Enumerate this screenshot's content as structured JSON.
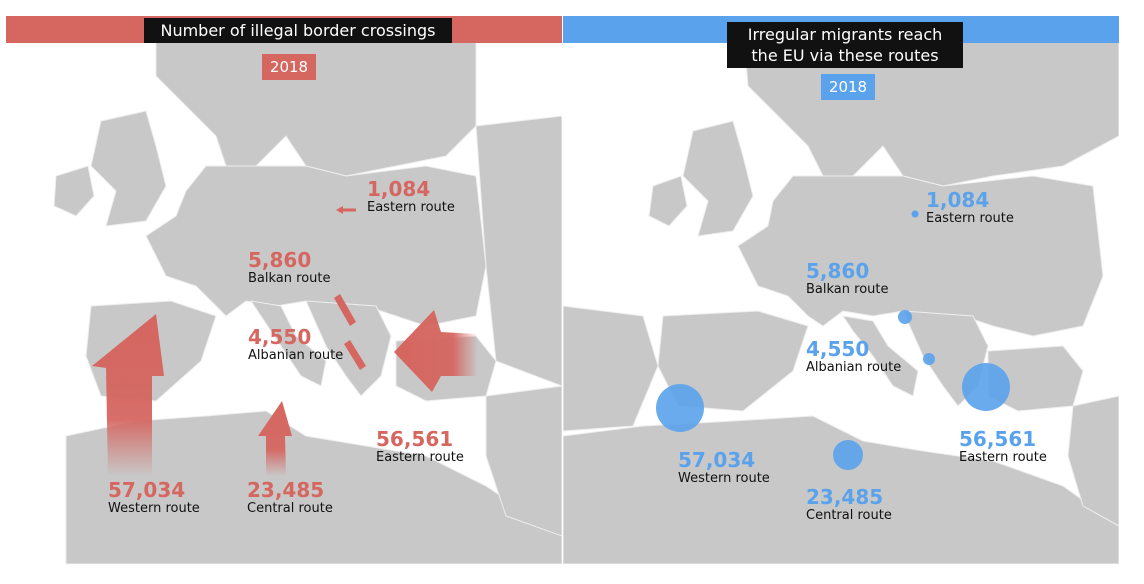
{
  "left": {
    "title": "Number of illegal border crossings",
    "year": "2018",
    "accent": "#d56660",
    "labels": [
      {
        "key": "eastern_land",
        "value": "1,084",
        "route": "Eastern route"
      },
      {
        "key": "balkan",
        "value": "5,860",
        "route": "Balkan route"
      },
      {
        "key": "albanian",
        "value": "4,550",
        "route": "Albanian route"
      },
      {
        "key": "eastern_sea",
        "value": "56,561",
        "route": "Eastern route"
      },
      {
        "key": "western",
        "value": "57,034",
        "route": "Western route"
      },
      {
        "key": "central",
        "value": "23,485",
        "route": "Central route"
      }
    ]
  },
  "right": {
    "title_line1": "Irregular migrants reach",
    "title_line2": "the EU via these routes",
    "year": "2018",
    "accent": "#5aa2ec",
    "labels": [
      {
        "key": "eastern_land",
        "value": "1,084",
        "route": "Eastern route"
      },
      {
        "key": "balkan",
        "value": "5,860",
        "route": "Balkan route"
      },
      {
        "key": "albanian",
        "value": "4,550",
        "route": "Albanian route"
      },
      {
        "key": "eastern_sea",
        "value": "56,561",
        "route": "Eastern route"
      },
      {
        "key": "western",
        "value": "57,034",
        "route": "Western route"
      },
      {
        "key": "central",
        "value": "23,485",
        "route": "Central route"
      }
    ]
  },
  "map_colors": {
    "land": "#c8c8c8",
    "sea": "#ffffff",
    "border": "#eeeeee"
  }
}
